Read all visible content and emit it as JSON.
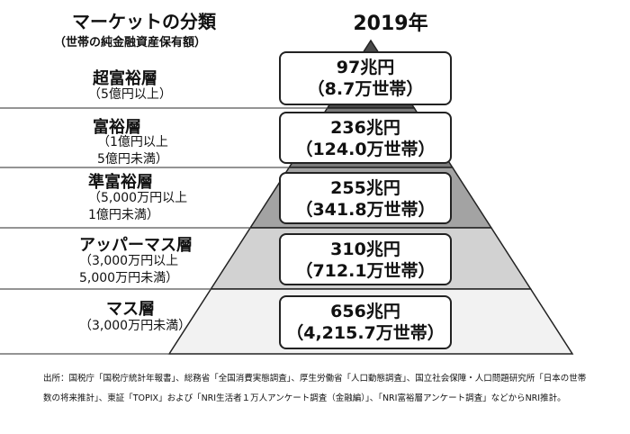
{
  "header": {
    "title": "マーケットの分類",
    "subtitle": "（世帯の純金融資産保有額）",
    "year": "2019年"
  },
  "tiers": [
    {
      "name": "超富裕層",
      "range": "（5億円以上）",
      "amount": "97兆円",
      "households": "（8.7万世帯）"
    },
    {
      "name": "富裕層",
      "range": "（1億円以上\n5億円未満）",
      "amount": "236兆円",
      "households": "（124.0万世帯）"
    },
    {
      "name": "準富裕層",
      "range": "（5,000万円以上\n1億円未満）",
      "amount": "255兆円",
      "households": "（341.8万世帯）"
    },
    {
      "name": "アッパーマス層",
      "range": "（3,000万円以上\n5,000万円未満）",
      "amount": "310兆円",
      "households": "（712.1万世帯）"
    },
    {
      "name": "マス層",
      "range": "（3,000万円未満）",
      "amount": "656兆円",
      "households": "（4,215.7万世帯）"
    }
  ],
  "source": "出所：国税庁「国税庁統計年報書」、総務省「全国消費実態調査」、厚生労働省「人口動態調査」、国立社会保障・人口問題研究所「日本の世帯数の将来推計」、東証「TOPIX」および「NRI生活者１万人アンケート調査（金融編）」、「NRI富裕層アンケート調査」などからNRI推計。",
  "colors": {
    "tier_fills": [
      "#4a4a4a",
      "#7b7b7b",
      "#a3a3a3",
      "#d2d2d2",
      "#f2f2f2"
    ],
    "divider": "#555555",
    "box_border": "#222222"
  }
}
